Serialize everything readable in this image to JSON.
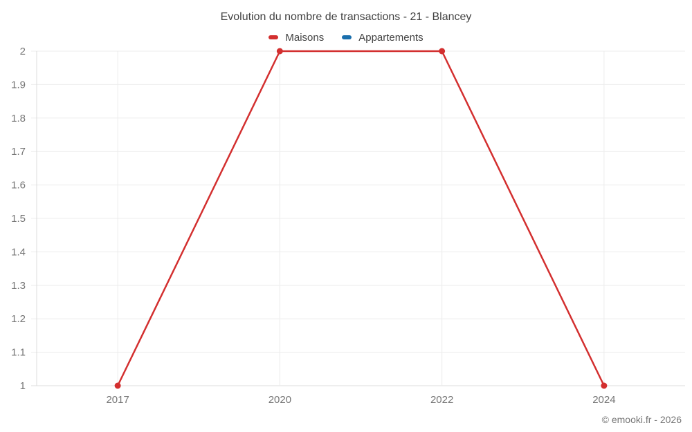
{
  "chart_data": {
    "type": "line",
    "title": "Evolution du nombre de transactions - 21 - Blancey",
    "categories": [
      "2017",
      "2020",
      "2022",
      "2024"
    ],
    "series": [
      {
        "name": "Maisons",
        "color": "#d32f2f",
        "values": [
          1,
          2,
          2,
          1
        ]
      },
      {
        "name": "Appartements",
        "color": "#1a6fad",
        "values": []
      }
    ],
    "ylim": [
      1,
      2
    ],
    "ytick_labels": [
      "1",
      "1.1",
      "1.2",
      "1.3",
      "1.4",
      "1.5",
      "1.6",
      "1.7",
      "1.8",
      "1.9",
      "2"
    ],
    "grid": true,
    "legend_position": "top",
    "marker_radius": 4.5,
    "line_width": 2.5
  },
  "style_colors": {
    "grid": "#ececec",
    "axis": "#dcdcdc",
    "tick_label": "#757575",
    "title_text": "#424242"
  },
  "footer": {
    "copyright": "© emooki.fr - 2026"
  }
}
